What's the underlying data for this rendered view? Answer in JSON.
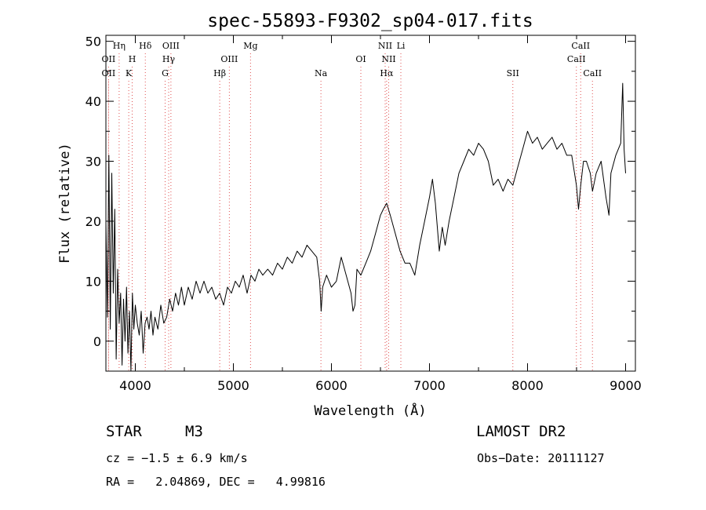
{
  "chart_data": {
    "type": "line",
    "title": "spec-55893-F9302_sp04-017.fits",
    "xlabel": "Wavelength (Å)",
    "ylabel": "Flux (relative)",
    "xlim": [
      3700,
      9100
    ],
    "ylim": [
      -5,
      51
    ],
    "xticks": [
      4000,
      5000,
      6000,
      7000,
      8000,
      9000
    ],
    "yticks": [
      0,
      10,
      20,
      30,
      40,
      50
    ],
    "grid": false,
    "line_color": "#000000",
    "marker_color": "#e05050",
    "series": [
      {
        "points": [
          [
            3700,
            20
          ],
          [
            3715,
            4
          ],
          [
            3730,
            31
          ],
          [
            3745,
            2
          ],
          [
            3760,
            28
          ],
          [
            3775,
            8
          ],
          [
            3790,
            22
          ],
          [
            3805,
            -3
          ],
          [
            3820,
            12
          ],
          [
            3835,
            3
          ],
          [
            3850,
            8
          ],
          [
            3865,
            -4
          ],
          [
            3880,
            7
          ],
          [
            3895,
            0
          ],
          [
            3910,
            9
          ],
          [
            3925,
            -2
          ],
          [
            3940,
            5
          ],
          [
            3955,
            -5
          ],
          [
            3970,
            8
          ],
          [
            3985,
            2
          ],
          [
            4000,
            6
          ],
          [
            4020,
            3
          ],
          [
            4040,
            1
          ],
          [
            4060,
            5
          ],
          [
            4080,
            -2
          ],
          [
            4100,
            3
          ],
          [
            4120,
            4
          ],
          [
            4140,
            2
          ],
          [
            4160,
            5
          ],
          [
            4180,
            1
          ],
          [
            4200,
            4
          ],
          [
            4230,
            2
          ],
          [
            4260,
            6
          ],
          [
            4290,
            3
          ],
          [
            4320,
            4
          ],
          [
            4350,
            7
          ],
          [
            4380,
            5
          ],
          [
            4410,
            8
          ],
          [
            4440,
            6
          ],
          [
            4470,
            9
          ],
          [
            4500,
            6
          ],
          [
            4540,
            9
          ],
          [
            4580,
            7
          ],
          [
            4620,
            10
          ],
          [
            4660,
            8
          ],
          [
            4700,
            10
          ],
          [
            4740,
            8
          ],
          [
            4780,
            9
          ],
          [
            4820,
            7
          ],
          [
            4860,
            8
          ],
          [
            4900,
            6
          ],
          [
            4940,
            9
          ],
          [
            4980,
            8
          ],
          [
            5020,
            10
          ],
          [
            5060,
            9
          ],
          [
            5100,
            11
          ],
          [
            5140,
            8
          ],
          [
            5180,
            11
          ],
          [
            5220,
            10
          ],
          [
            5260,
            12
          ],
          [
            5300,
            11
          ],
          [
            5350,
            12
          ],
          [
            5400,
            11
          ],
          [
            5450,
            13
          ],
          [
            5500,
            12
          ],
          [
            5550,
            14
          ],
          [
            5600,
            13
          ],
          [
            5650,
            15
          ],
          [
            5700,
            14
          ],
          [
            5750,
            16
          ],
          [
            5800,
            15
          ],
          [
            5850,
            14
          ],
          [
            5880,
            10
          ],
          [
            5895,
            5
          ],
          [
            5910,
            9
          ],
          [
            5950,
            11
          ],
          [
            6000,
            9
          ],
          [
            6050,
            10
          ],
          [
            6100,
            14
          ],
          [
            6150,
            11
          ],
          [
            6200,
            8
          ],
          [
            6220,
            5
          ],
          [
            6240,
            6
          ],
          [
            6260,
            12
          ],
          [
            6300,
            11
          ],
          [
            6350,
            13
          ],
          [
            6400,
            15
          ],
          [
            6450,
            18
          ],
          [
            6500,
            21
          ],
          [
            6530,
            22
          ],
          [
            6563,
            23
          ],
          [
            6600,
            21
          ],
          [
            6650,
            18
          ],
          [
            6700,
            15
          ],
          [
            6750,
            13
          ],
          [
            6800,
            13
          ],
          [
            6850,
            11
          ],
          [
            6900,
            16
          ],
          [
            6950,
            20
          ],
          [
            7000,
            24
          ],
          [
            7030,
            27
          ],
          [
            7060,
            23
          ],
          [
            7100,
            15
          ],
          [
            7130,
            19
          ],
          [
            7160,
            16
          ],
          [
            7200,
            20
          ],
          [
            7250,
            24
          ],
          [
            7300,
            28
          ],
          [
            7350,
            30
          ],
          [
            7400,
            32
          ],
          [
            7450,
            31
          ],
          [
            7500,
            33
          ],
          [
            7550,
            32
          ],
          [
            7600,
            30
          ],
          [
            7650,
            26
          ],
          [
            7700,
            27
          ],
          [
            7750,
            25
          ],
          [
            7800,
            27
          ],
          [
            7850,
            26
          ],
          [
            7900,
            29
          ],
          [
            7950,
            32
          ],
          [
            8000,
            35
          ],
          [
            8050,
            33
          ],
          [
            8100,
            34
          ],
          [
            8150,
            32
          ],
          [
            8200,
            33
          ],
          [
            8250,
            34
          ],
          [
            8300,
            32
          ],
          [
            8350,
            33
          ],
          [
            8400,
            31
          ],
          [
            8450,
            31
          ],
          [
            8498,
            26
          ],
          [
            8520,
            22
          ],
          [
            8542,
            26
          ],
          [
            8570,
            30
          ],
          [
            8600,
            30
          ],
          [
            8640,
            28
          ],
          [
            8662,
            25
          ],
          [
            8700,
            28
          ],
          [
            8750,
            30
          ],
          [
            8800,
            24
          ],
          [
            8830,
            21
          ],
          [
            8850,
            28
          ],
          [
            8900,
            31
          ],
          [
            8950,
            33
          ],
          [
            8970,
            43
          ],
          [
            8985,
            32
          ],
          [
            9000,
            28
          ]
        ]
      }
    ],
    "lines": [
      {
        "x": 3727,
        "tier": 2,
        "label": "OII"
      },
      {
        "x": 3727,
        "tier": 3,
        "label": "OII"
      },
      {
        "x": 3835,
        "tier": 1,
        "label": "Hη"
      },
      {
        "x": 3933,
        "tier": 3,
        "label": "K"
      },
      {
        "x": 3968,
        "tier": 2,
        "label": "H"
      },
      {
        "x": 4102,
        "tier": 1,
        "label": "Hδ"
      },
      {
        "x": 4304,
        "tier": 3,
        "label": "G"
      },
      {
        "x": 4340,
        "tier": 2,
        "label": "Hγ"
      },
      {
        "x": 4363,
        "tier": 1,
        "label": "OIII"
      },
      {
        "x": 4861,
        "tier": 3,
        "label": "Hβ"
      },
      {
        "x": 4959,
        "tier": 2,
        "label": "OIII"
      },
      {
        "x": 5175,
        "tier": 1,
        "label": "Mg"
      },
      {
        "x": 5893,
        "tier": 3,
        "label": "Na"
      },
      {
        "x": 6300,
        "tier": 2,
        "label": "OI"
      },
      {
        "x": 6548,
        "tier": 1,
        "label": "NII"
      },
      {
        "x": 6563,
        "tier": 3,
        "label": "Hα"
      },
      {
        "x": 6584,
        "tier": 2,
        "label": "NII"
      },
      {
        "x": 6708,
        "tier": 1,
        "label": "Li"
      },
      {
        "x": 7850,
        "tier": 3,
        "label": "SII"
      },
      {
        "x": 8498,
        "tier": 2,
        "label": "CaII"
      },
      {
        "x": 8542,
        "tier": 1,
        "label": "CaII"
      },
      {
        "x": 8662,
        "tier": 3,
        "label": "CaII"
      }
    ]
  },
  "info": {
    "class": "STAR",
    "subclass": "M3",
    "survey": "LAMOST DR2",
    "cz": "cz = −1.5 ± 6.9 km/s",
    "obsdate": "Obs−Date: 20111127",
    "radec": "RA =   2.04869, DEC =   4.99816"
  }
}
